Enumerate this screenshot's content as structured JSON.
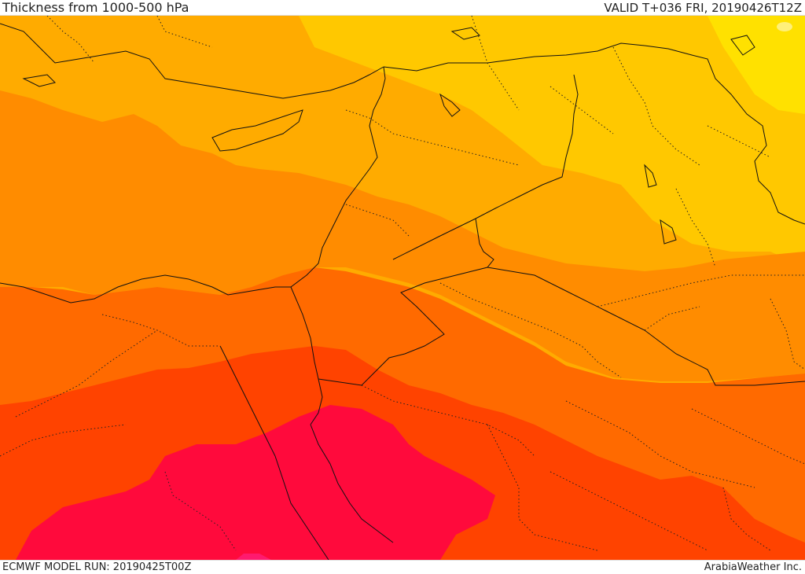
{
  "header": {
    "title": "Thickness from 1000-500 hPa",
    "valid": "VALID T+036 FRI, 20190426T12Z"
  },
  "footer": {
    "model_run": "ECMWF MODEL RUN: 20190425T00Z",
    "credit": "ArabiaWeather Inc."
  },
  "palette": {
    "yellow": "#ffe100",
    "light_yellow_orange": "#ffc800",
    "light_orange": "#ffab00",
    "orange": "#ff8c00",
    "dark_orange": "#ff6a00",
    "red_orange": "#ff4300",
    "crimson": "#ff0a3c",
    "pink": "#ff1a6e",
    "borders": "#111111"
  }
}
